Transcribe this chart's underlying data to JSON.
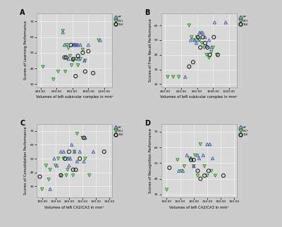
{
  "fig_facecolor": "#cccccc",
  "panel_facecolor": "#d8d8d8",
  "HP_color": "#4a5fa5",
  "MCI_color": "#2e8b2e",
  "TLE_color": "#111111",
  "panels": [
    {
      "label": "A",
      "xlabel": "Volumes of left subicular complex in mm³",
      "ylabel": "Scores of Learning Performance",
      "xlim": [
        350,
        1300
      ],
      "ylim": [
        28,
        75
      ],
      "xticks": [
        400,
        600,
        800,
        1000,
        1200
      ],
      "yticks": [
        30,
        40,
        50,
        60,
        70
      ],
      "HP_x": [
        680,
        700,
        750,
        800,
        810,
        820,
        840,
        855,
        870,
        880,
        900,
        950,
        1000,
        1150
      ],
      "HP_y": [
        63,
        55,
        46,
        46,
        55,
        55,
        55,
        55,
        55,
        46,
        55,
        45,
        55,
        58
      ],
      "MCI_x": [
        430,
        560,
        620,
        680,
        710,
        730,
        750,
        770,
        790,
        810,
        830,
        850,
        870,
        900,
        930,
        960,
        1130
      ],
      "MCI_y": [
        41,
        33,
        38,
        64,
        38,
        55,
        53,
        48,
        42,
        45,
        55,
        46,
        42,
        46,
        52,
        45,
        58
      ],
      "TLE_x": [
        700,
        720,
        780,
        810,
        840,
        870,
        930,
        960,
        1000,
        1060
      ],
      "TLE_y": [
        47,
        47,
        55,
        46,
        35,
        48,
        50,
        38,
        51,
        37
      ]
    },
    {
      "label": "B",
      "xlabel": "Volumes of left subicular complex in mm³",
      "ylabel": "Scores of Free Recall Performance",
      "xlim": [
        350,
        1300
      ],
      "ylim": [
        18,
        68
      ],
      "xticks": [
        400,
        600,
        800,
        1000,
        1200
      ],
      "yticks": [
        20,
        30,
        40,
        50,
        60
      ],
      "HP_x": [
        650,
        720,
        770,
        790,
        810,
        830,
        850,
        870,
        900,
        920,
        950,
        980,
        1020,
        1160
      ],
      "HP_y": [
        25,
        50,
        50,
        48,
        50,
        55,
        55,
        55,
        52,
        46,
        50,
        45,
        62,
        62
      ],
      "MCI_x": [
        430,
        500,
        570,
        700,
        730,
        760,
        800,
        830,
        860,
        890,
        920,
        950,
        980,
        1000,
        1050
      ],
      "MCI_y": [
        25,
        25,
        25,
        60,
        52,
        50,
        52,
        50,
        48,
        45,
        40,
        38,
        42,
        45,
        40
      ],
      "TLE_x": [
        700,
        750,
        810,
        840,
        870,
        900,
        930,
        960,
        1010,
        1060
      ],
      "TLE_y": [
        32,
        35,
        52,
        45,
        52,
        48,
        45,
        40,
        52,
        40
      ]
    },
    {
      "label": "C",
      "xlabel": "Volumes of left CA2/CA3 in mm³",
      "ylabel": "Scores of Consolidation Performance",
      "xlim": [
        80,
        360
      ],
      "ylim": [
        22,
        75
      ],
      "xticks": [
        100,
        150,
        200,
        250,
        300,
        350
      ],
      "yticks": [
        30,
        40,
        50,
        60,
        70
      ],
      "HP_x": [
        130,
        145,
        155,
        170,
        180,
        195,
        200,
        205,
        210,
        220,
        230,
        240,
        255,
        260,
        290
      ],
      "HP_y": [
        28,
        50,
        45,
        55,
        55,
        50,
        45,
        50,
        60,
        55,
        48,
        55,
        48,
        65,
        55
      ],
      "MCI_x": [
        100,
        115,
        125,
        130,
        150,
        160,
        170,
        180,
        190,
        195,
        200,
        215,
        220,
        230,
        250,
        260,
        275
      ],
      "MCI_y": [
        28,
        45,
        35,
        42,
        45,
        50,
        38,
        50,
        38,
        42,
        50,
        38,
        55,
        68,
        65,
        50,
        38
      ],
      "TLE_x": [
        92,
        170,
        185,
        200,
        215,
        225,
        240,
        255,
        330
      ],
      "TLE_y": [
        37,
        38,
        50,
        55,
        42,
        42,
        50,
        65,
        55
      ]
    },
    {
      "label": "D",
      "xlabel": "Volumes of left CA2/CA3 in mm³",
      "ylabel": "Scores of Recognition Performance",
      "xlim": [
        80,
        360
      ],
      "ylim": [
        28,
        75
      ],
      "xticks": [
        100,
        150,
        200,
        250,
        300,
        350
      ],
      "yticks": [
        30,
        40,
        50,
        60,
        70
      ],
      "HP_x": [
        145,
        160,
        175,
        190,
        200,
        215,
        220,
        235,
        250,
        260,
        270
      ],
      "HP_y": [
        45,
        45,
        55,
        53,
        48,
        55,
        53,
        55,
        62,
        62,
        53
      ],
      "MCI_x": [
        100,
        140,
        155,
        165,
        185,
        200,
        205,
        215,
        225,
        240,
        250,
        265,
        280
      ],
      "MCI_y": [
        33,
        52,
        45,
        48,
        53,
        48,
        55,
        42,
        62,
        48,
        42,
        45,
        42
      ],
      "TLE_x": [
        110,
        190,
        200,
        215,
        225,
        240,
        255,
        310
      ],
      "TLE_y": [
        47,
        52,
        52,
        45,
        40,
        42,
        45,
        42
      ]
    }
  ]
}
